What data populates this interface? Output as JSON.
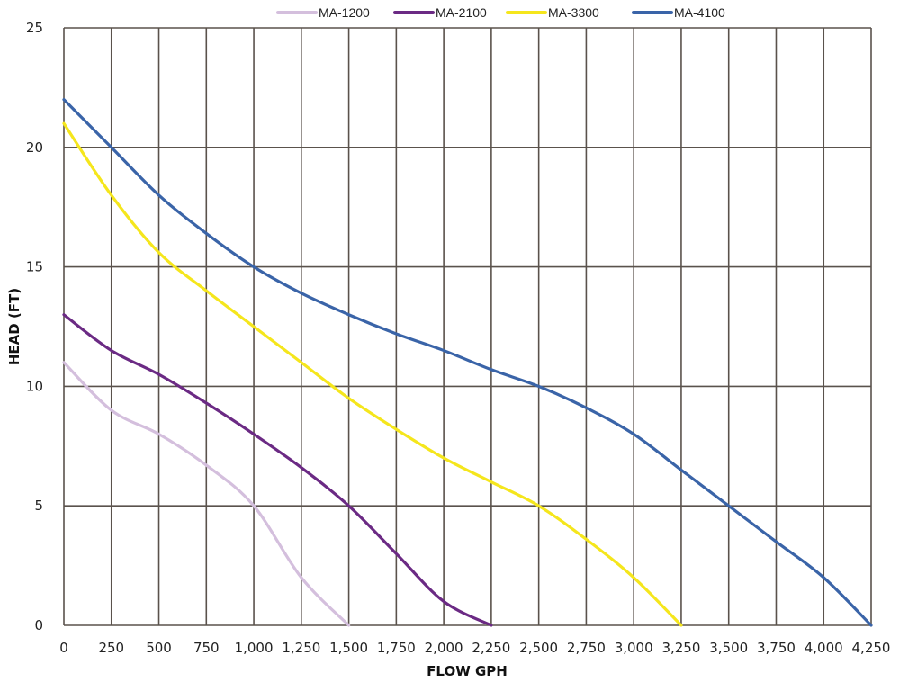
{
  "chart_data": {
    "type": "line",
    "title": "",
    "xlabel": "FLOW GPH",
    "ylabel": "HEAD (FT)",
    "xlim": [
      0,
      4250
    ],
    "ylim": [
      0,
      25
    ],
    "grid": true,
    "legend_position": "top",
    "x_ticks": [
      "0",
      "250",
      "500",
      "750",
      "1,000",
      "1,250",
      "1,500",
      "1,750",
      "2,000",
      "2,250",
      "2,500",
      "2,750",
      "3,000",
      "3,250",
      "3,500",
      "3,750",
      "4,000",
      "4,250"
    ],
    "y_ticks": [
      "0",
      "5",
      "10",
      "15",
      "20",
      "25"
    ],
    "series": [
      {
        "name": "MA-1200",
        "color": "#d4bfdd",
        "x": [
          0,
          250,
          500,
          750,
          1000,
          1250,
          1500
        ],
        "values": [
          11,
          9,
          8,
          6.7,
          5,
          2,
          0
        ]
      },
      {
        "name": "MA-2100",
        "color": "#6b2a84",
        "x": [
          0,
          250,
          500,
          750,
          1000,
          1250,
          1500,
          1750,
          2000,
          2250
        ],
        "values": [
          13,
          11.5,
          10.5,
          9.3,
          8,
          6.6,
          5,
          3,
          1,
          0
        ]
      },
      {
        "name": "MA-3300",
        "color": "#f5e61c",
        "x": [
          0,
          250,
          500,
          750,
          1000,
          1250,
          1500,
          1750,
          2000,
          2250,
          2500,
          2750,
          3000,
          3250
        ],
        "values": [
          21,
          18,
          15.6,
          14,
          12.5,
          11,
          9.5,
          8.2,
          7,
          6,
          5,
          3.6,
          2,
          0
        ]
      },
      {
        "name": "MA-4100",
        "color": "#3a64a8",
        "x": [
          0,
          250,
          500,
          750,
          1000,
          1250,
          1500,
          1750,
          2000,
          2250,
          2500,
          2750,
          3000,
          3250,
          3500,
          3750,
          4000,
          4250
        ],
        "values": [
          22,
          20,
          18,
          16.4,
          15,
          13.9,
          13,
          12.2,
          11.5,
          10.7,
          10,
          9.1,
          8,
          6.5,
          5,
          3.5,
          2,
          0
        ]
      }
    ]
  },
  "style": {
    "grid_color": "#5a524c",
    "background": "#ffffff"
  }
}
